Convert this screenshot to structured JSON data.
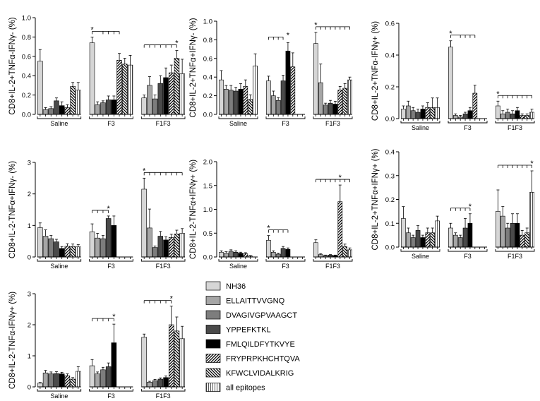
{
  "legend": [
    {
      "label": "NH36",
      "color": "#d6d6d6",
      "pattern": "solid"
    },
    {
      "label": "ELLAITTVVGNQ",
      "color": "#a6a6a6",
      "pattern": "solid"
    },
    {
      "label": "DVAGIVGPVAAGCT",
      "color": "#7d7d7d",
      "pattern": "solid"
    },
    {
      "label": "YPPEFKTKL",
      "color": "#4a4a4a",
      "pattern": "solid"
    },
    {
      "label": "FMLQILDFYTKVYE",
      "color": "#000000",
      "pattern": "solid"
    },
    {
      "label": "FRYPRPKHCHTQVA",
      "color": "#ffffff",
      "pattern": "diag-fwd"
    },
    {
      "label": "KFWCLVIDALKRIG",
      "color": "#ffffff",
      "pattern": "diag-back"
    },
    {
      "label": "all epitopes",
      "color": "#ffffff",
      "pattern": "vert"
    }
  ],
  "chart_data": [
    {
      "type": "bar",
      "title": "",
      "ylabel": "CD8+IL-2+TNFα-IFNγ- (%)",
      "ylim": [
        0,
        1.0
      ],
      "yticks": [
        "0.0",
        "0.2",
        "0.4",
        "0.6",
        "0.8",
        "1.0"
      ],
      "groups": [
        "Saline",
        "F3",
        "F1F3"
      ],
      "series_names": [
        "NH36",
        "ELLAITTVVGNQ",
        "DVAGIVGPVAAGCT",
        "YPPEFKTKL",
        "FMLQILDFYTKVYE",
        "FRYPRPKHCHTQVA",
        "KFWCLVIDALKRIG",
        "all epitopes"
      ],
      "values": [
        [
          0.55,
          0.05,
          0.06,
          0.14,
          0.09,
          0.07,
          0.29,
          0.25
        ],
        [
          0.74,
          0.1,
          0.12,
          0.15,
          0.15,
          0.56,
          0.52,
          0.51
        ],
        [
          0.17,
          0.3,
          0.16,
          0.32,
          0.38,
          0.43,
          0.58,
          0.42
        ]
      ],
      "errors": [
        [
          0.12,
          0.02,
          0.02,
          0.03,
          0.04,
          0.03,
          0.04,
          0.08
        ],
        [
          0.06,
          0.03,
          0.02,
          0.04,
          0.04,
          0.07,
          0.06,
          0.1
        ],
        [
          0.03,
          0.09,
          0.04,
          0.08,
          0.1,
          0.08,
          0.08,
          0.15
        ]
      ],
      "significance": [
        {
          "group": "F3",
          "from": 0,
          "to": [
            2,
            3,
            4,
            5
          ],
          "star_at": 0
        },
        {
          "group": "F1F3",
          "from": 0,
          "to": [
            1,
            2,
            3,
            4,
            5,
            6
          ],
          "star_at": 6
        }
      ]
    },
    {
      "type": "bar",
      "title": "",
      "ylabel": "CD8+IL-2+TNFα+IFNγ- (%)",
      "ylim": [
        0,
        1.0
      ],
      "yticks": [
        "0.0",
        "0.2",
        "0.4",
        "0.6",
        "0.8",
        "1.0"
      ],
      "groups": [
        "Saline",
        "F3",
        "F1F3"
      ],
      "series_names": [
        "NH36",
        "ELLAITTVVGNQ",
        "DVAGIVGPVAAGCT",
        "YPPEFKTKL",
        "FMLQILDFYTKVYE",
        "FRYPRPKHCHTQVA",
        "KFWCLVIDALKRIG",
        "all epitopes"
      ],
      "values": [
        [
          0.37,
          0.27,
          0.26,
          0.25,
          0.27,
          0.3,
          0.16,
          0.52
        ],
        [
          0.36,
          0.2,
          0.15,
          0.36,
          0.68,
          0.51,
          0,
          0
        ],
        [
          0.76,
          0.34,
          0.1,
          0.12,
          0.11,
          0.26,
          0.28,
          0.37
        ]
      ],
      "errors": [
        [
          0.1,
          0.04,
          0.05,
          0.04,
          0.06,
          0.07,
          0.05,
          0.13
        ],
        [
          0.05,
          0.05,
          0.03,
          0.06,
          0.09,
          0.15,
          0,
          0
        ],
        [
          0.12,
          0.2,
          0.02,
          0.03,
          0.03,
          0.04,
          0.05,
          0.03
        ]
      ],
      "significance": [
        {
          "group": "F3",
          "from": 0,
          "to": [
            1,
            2,
            3
          ],
          "star_at": 4
        },
        {
          "group": "F1F3",
          "from": 0,
          "to": [
            1,
            2,
            3,
            4,
            5,
            6,
            7
          ],
          "star_at": 0
        }
      ]
    },
    {
      "type": "bar",
      "title": "",
      "ylabel": "CD8+IL-2+TNFα-IFNγ+ (%)",
      "ylim": [
        0,
        0.6
      ],
      "yticks": [
        "0.0",
        "0.2",
        "0.4",
        "0.6"
      ],
      "groups": [
        "Saline",
        "F3",
        "F1F3"
      ],
      "series_names": [
        "NH36",
        "ELLAITTVVGNQ",
        "DVAGIVGPVAAGCT",
        "YPPEFKTKL",
        "FMLQILDFYTKVYE",
        "FRYPRPKHCHTQVA",
        "KFWCLVIDALKRIG",
        "all epitopes"
      ],
      "values": [
        [
          0.06,
          0.08,
          0.05,
          0.04,
          0.06,
          0.07,
          0.07,
          0.07
        ],
        [
          0.45,
          0.02,
          0.01,
          0.03,
          0.05,
          0.16,
          0,
          0
        ],
        [
          0.08,
          0.03,
          0.04,
          0.03,
          0.05,
          0.02,
          0.02,
          0.04
        ]
      ],
      "errors": [
        [
          0.02,
          0.03,
          0.02,
          0.02,
          0.02,
          0.03,
          0.06,
          0.06
        ],
        [
          0.04,
          0.01,
          0.01,
          0.01,
          0.02,
          0.05,
          0,
          0
        ],
        [
          0.03,
          0.02,
          0.02,
          0.02,
          0.02,
          0.01,
          0.01,
          0.02
        ]
      ],
      "significance": [
        {
          "group": "F3",
          "from": 0,
          "to": [
            2,
            3,
            4,
            5
          ],
          "star_at": 0
        },
        {
          "group": "F1F3",
          "from": 0,
          "to": [
            1,
            2,
            3,
            4,
            5,
            6,
            7
          ],
          "star_at": 0
        }
      ]
    },
    {
      "type": "bar",
      "title": "",
      "ylabel": "CD8+IL-2-TNFα+IFNγ- (%)",
      "ylim": [
        0,
        3
      ],
      "yticks": [
        "0",
        "1",
        "2",
        "3"
      ],
      "groups": [
        "Saline",
        "F3",
        "F1F3"
      ],
      "series_names": [
        "NH36",
        "ELLAITTVVGNQ",
        "DVAGIVGPVAAGCT",
        "YPPEFKTKL",
        "FMLQILDFYTKVYE",
        "FRYPRPKHCHTQVA",
        "KFWCLVIDALKRIG",
        "all epitopes"
      ],
      "values": [
        [
          0.93,
          0.66,
          0.58,
          0.48,
          0.27,
          0.34,
          0.33,
          0.32
        ],
        [
          0.8,
          0.6,
          0.58,
          1.22,
          1.0,
          0,
          0,
          0
        ],
        [
          2.15,
          0.92,
          0.3,
          0.66,
          0.54,
          0.62,
          0.73,
          0.75
        ]
      ],
      "errors": [
        [
          0.15,
          0.2,
          0.1,
          0.08,
          0.06,
          0.08,
          0.08,
          0.07
        ],
        [
          0.25,
          0.15,
          0.1,
          0.08,
          0.3,
          0,
          0,
          0
        ],
        [
          0.35,
          0.6,
          0.05,
          0.15,
          0.1,
          0.1,
          0.12,
          0.15
        ]
      ],
      "significance": [
        {
          "group": "F3",
          "from": 0,
          "to": [
            1,
            2,
            3
          ],
          "star_at": 3
        },
        {
          "group": "F1F3",
          "from": 0,
          "to": [
            1,
            2,
            3,
            4,
            5,
            6,
            7
          ],
          "star_at": 0
        }
      ]
    },
    {
      "type": "bar",
      "title": "",
      "ylabel": "CD8+IL-2-TNFα+IFNγ+ (%)",
      "ylim": [
        0,
        2.0
      ],
      "yticks": [
        "0.0",
        "0.5",
        "1.0",
        "1.5",
        "2.0"
      ],
      "groups": [
        "Saline",
        "F3",
        "F1F3"
      ],
      "series_names": [
        "NH36",
        "ELLAITTVVGNQ",
        "DVAGIVGPVAAGCT",
        "YPPEFKTKL",
        "FMLQILDFYTKVYE",
        "FRYPRPKHCHTQVA",
        "KFWCLVIDALKRIG",
        "all epitopes"
      ],
      "values": [
        [
          0.1,
          0.08,
          0.12,
          0.1,
          0.08,
          0.07,
          0.02,
          0
        ],
        [
          0.35,
          0.1,
          0.06,
          0.18,
          0.16,
          0,
          0,
          0
        ],
        [
          0.3,
          0.05,
          0.03,
          0.04,
          0.03,
          1.16,
          0.22,
          0.15
        ]
      ],
      "errors": [
        [
          0.03,
          0.03,
          0.03,
          0.03,
          0.02,
          0.02,
          0.01,
          0
        ],
        [
          0.1,
          0.03,
          0.02,
          0.04,
          0.03,
          0,
          0,
          0
        ],
        [
          0.06,
          0.02,
          0.01,
          0.01,
          0.01,
          0.35,
          0.05,
          0.04
        ]
      ],
      "significance": [
        {
          "group": "F3",
          "from": 0,
          "to": [
            1,
            2,
            3,
            4
          ],
          "star_at": 0
        },
        {
          "group": "F1F3",
          "from": 0,
          "to": [
            1,
            2,
            3,
            4,
            5,
            6,
            7
          ],
          "star_at": 5
        }
      ]
    },
    {
      "type": "bar",
      "title": "",
      "ylabel": "CD8+IL-2+TNFα+IFNγ+ (%)",
      "ylim": [
        0,
        0.4
      ],
      "yticks": [
        "0.0",
        "0.1",
        "0.2",
        "0.3",
        "0.4"
      ],
      "groups": [
        "Saline",
        "F3",
        "F1F3"
      ],
      "series_names": [
        "NH36",
        "ELLAITTVVGNQ",
        "DVAGIVGPVAAGCT",
        "YPPEFKTKL",
        "FMLQILDFYTKVYE",
        "FRYPRPKHCHTQVA",
        "KFWCLVIDALKRIG",
        "all epitopes"
      ],
      "values": [
        [
          0.12,
          0.06,
          0.04,
          0.07,
          0.04,
          0.06,
          0.06,
          0.11
        ],
        [
          0.08,
          0.05,
          0.04,
          0.08,
          0.1,
          0,
          0,
          0
        ],
        [
          0.15,
          0.13,
          0.08,
          0.1,
          0.1,
          0.05,
          0.06,
          0.23
        ]
      ],
      "errors": [
        [
          0.05,
          0.02,
          0.01,
          0.02,
          0.01,
          0.02,
          0.02,
          0.02
        ],
        [
          0.02,
          0.01,
          0.01,
          0.04,
          0.04,
          0,
          0,
          0
        ],
        [
          0.09,
          0.04,
          0.02,
          0.04,
          0.04,
          0.02,
          0.02,
          0.09
        ]
      ],
      "significance": [
        {
          "group": "F3",
          "from": 0,
          "to": [
            1,
            2,
            3,
            4
          ],
          "star_at": 4
        },
        {
          "group": "F1F3",
          "from": 0,
          "to": [
            1,
            2,
            3,
            4,
            5,
            6,
            7
          ],
          "star_at": 7
        }
      ]
    },
    {
      "type": "bar",
      "title": "",
      "ylabel": "CD8+IL-2-TNFα-IFNγ+ (%)",
      "ylim": [
        0,
        3
      ],
      "yticks": [
        "0",
        "1",
        "2",
        "3"
      ],
      "groups": [
        "Saline",
        "F3",
        "F1F3"
      ],
      "series_names": [
        "NH36",
        "ELLAITTVVGNQ",
        "DVAGIVGPVAAGCT",
        "YPPEFKTKL",
        "FMLQILDFYTKVYE",
        "FRYPRPKHCHTQVA",
        "KFWCLVIDALKRIG",
        "all epitopes"
      ],
      "values": [
        [
          0.12,
          0.45,
          0.42,
          0.43,
          0.42,
          0.36,
          0.25,
          0.5
        ],
        [
          0.68,
          0.42,
          0.55,
          0.65,
          1.42,
          0,
          0,
          0
        ],
        [
          1.6,
          0.15,
          0.2,
          0.25,
          0.3,
          2.0,
          1.8,
          1.55
        ]
      ],
      "errors": [
        [
          0.02,
          0.08,
          0.06,
          0.06,
          0.05,
          0.06,
          0.05,
          0.15
        ],
        [
          0.2,
          0.06,
          0.08,
          0.12,
          0.6,
          0,
          0,
          0
        ],
        [
          0.1,
          0.03,
          0.04,
          0.04,
          0.05,
          0.6,
          0.45,
          0.4
        ]
      ],
      "significance": [
        {
          "group": "F3",
          "from": 0,
          "to": [
            1,
            2,
            3,
            4
          ],
          "star_at": 4
        },
        {
          "group": "F1F3",
          "from": 0,
          "to": [
            1,
            2,
            3,
            4,
            5
          ],
          "star_at": 5
        }
      ]
    }
  ]
}
